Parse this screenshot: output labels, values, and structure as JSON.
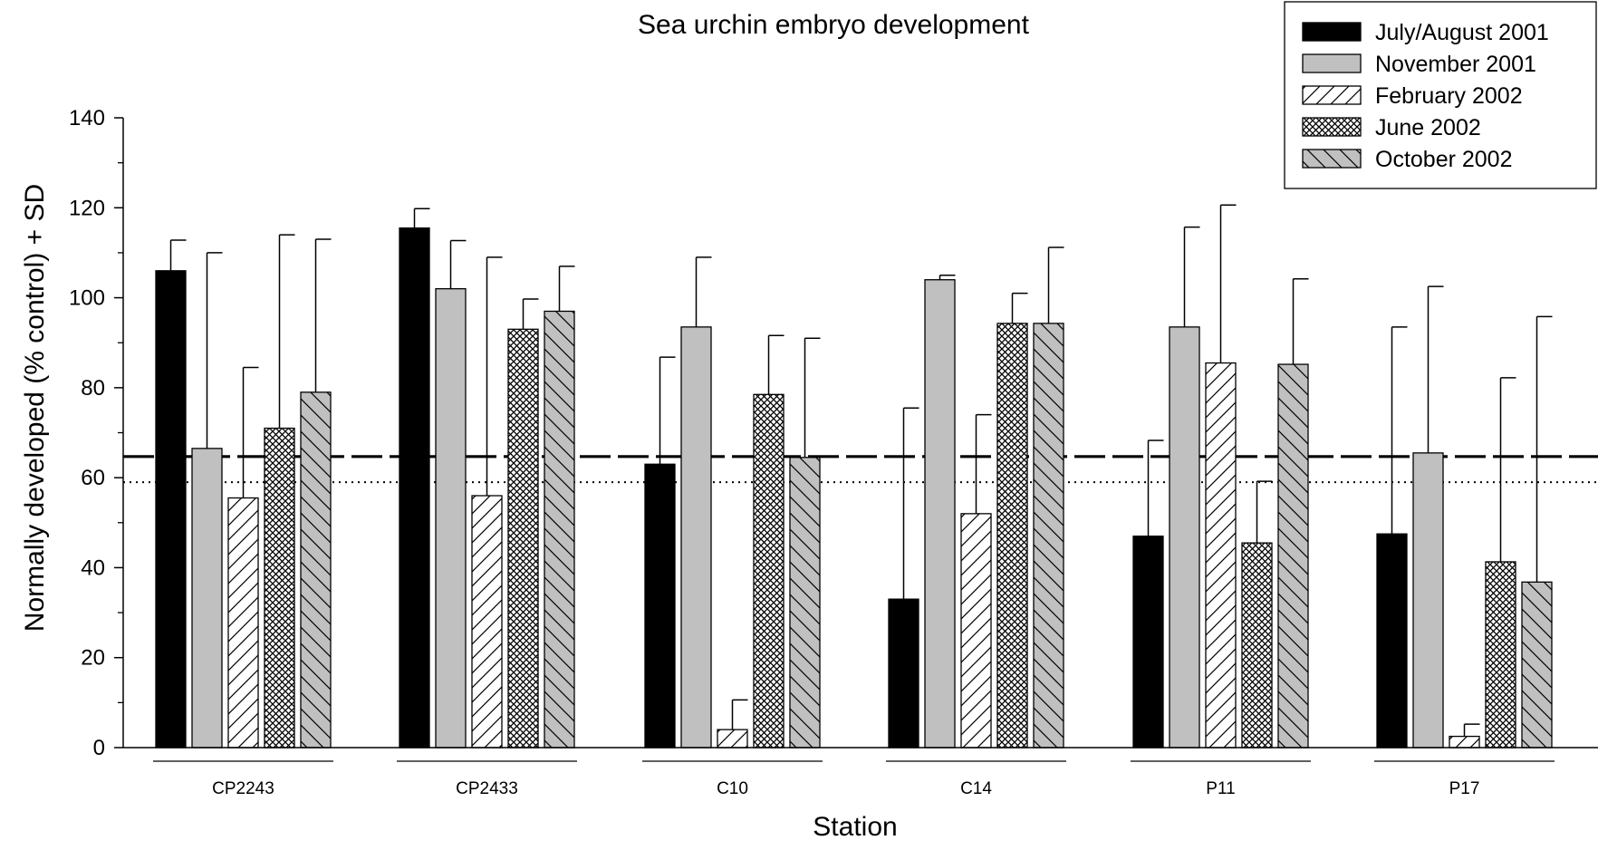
{
  "chart_data": {
    "type": "bar",
    "title": "Sea urchin embryo development",
    "xlabel": "Station",
    "ylabel": "Normally developed (% control) + SD",
    "ylim": [
      0,
      140
    ],
    "yticks": [
      0,
      20,
      40,
      60,
      80,
      100,
      120,
      140
    ],
    "categories": [
      "CP2243",
      "CP2433",
      "C10",
      "C14",
      "P11",
      "P17"
    ],
    "series": [
      {
        "name": "July/August 2001",
        "pattern": "solid-black",
        "values": [
          106,
          115.5,
          63,
          33,
          47,
          47.5
        ],
        "sd_top": [
          112.8,
          119.8,
          86.8,
          75.5,
          68.3,
          93.5
        ]
      },
      {
        "name": "November 2001",
        "pattern": "solid-gray",
        "values": [
          66.5,
          102,
          93.5,
          104,
          93.5,
          65.5
        ],
        "sd_top": [
          110,
          112.7,
          109,
          105,
          115.7,
          102.5
        ]
      },
      {
        "name": "February 2002",
        "pattern": "forward-hatch",
        "values": [
          55.5,
          56,
          4,
          52,
          85.5,
          2.5
        ],
        "sd_top": [
          84.5,
          109,
          10.6,
          74,
          120.6,
          5.2
        ]
      },
      {
        "name": "June 2002",
        "pattern": "crosshatch",
        "values": [
          71,
          93,
          78.5,
          94.3,
          45.5,
          41.3
        ],
        "sd_top": [
          114,
          99.7,
          91.6,
          101,
          59.2,
          82.2
        ]
      },
      {
        "name": "October 2002",
        "pattern": "gray-back-hatch",
        "values": [
          79,
          97,
          64.5,
          94.3,
          85.2,
          36.8
        ],
        "sd_top": [
          113,
          107,
          91,
          111.2,
          104.2,
          95.8
        ]
      }
    ],
    "reference_lines": [
      {
        "style": "dashed",
        "y": 64.7
      },
      {
        "style": "dotted",
        "y": 59
      }
    ],
    "legend": {
      "position": "top-right"
    },
    "colors": {
      "black": "#000000",
      "gray": "#c0c0c0",
      "white": "#ffffff"
    }
  }
}
